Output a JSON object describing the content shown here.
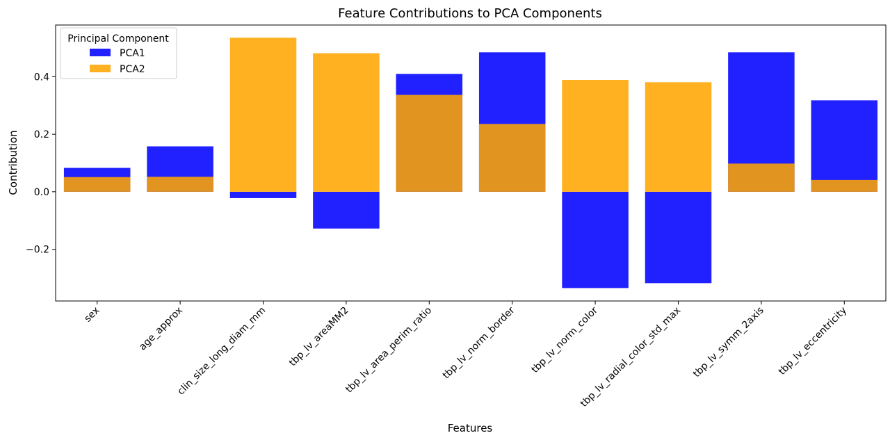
{
  "chart_data": {
    "type": "bar",
    "title": "Feature Contributions to PCA Components",
    "xlabel": "Features",
    "ylabel": "Contribution",
    "categories": [
      "sex",
      "age_approx",
      "clin_size_long_diam_mm",
      "tbp_lv_areaMM2",
      "tbp_lv_area_perim_ratio",
      "tbp_lv_norm_border",
      "tbp_lv_norm_color",
      "tbp_lv_radial_color_std_max",
      "tbp_lv_symm_2axis",
      "tbp_lv_eccentricity"
    ],
    "series": [
      {
        "name": "PCA1",
        "color": "#0000ff",
        "values": [
          0.083,
          0.158,
          -0.022,
          -0.128,
          0.41,
          0.485,
          -0.335,
          -0.318,
          0.485,
          0.318
        ]
      },
      {
        "name": "PCA2",
        "color": "#ffa500",
        "values": [
          0.051,
          0.052,
          0.536,
          0.482,
          0.337,
          0.236,
          0.389,
          0.381,
          0.098,
          0.041
        ]
      }
    ],
    "ylim": [
      -0.38,
      0.58
    ],
    "yticks": [
      -0.2,
      0.0,
      0.2,
      0.4
    ],
    "ytick_labels": [
      "−0.2",
      "0.0",
      "0.2",
      "0.4"
    ],
    "grid": false,
    "legend": {
      "title": "Principal Component",
      "placement": "top-left"
    }
  }
}
